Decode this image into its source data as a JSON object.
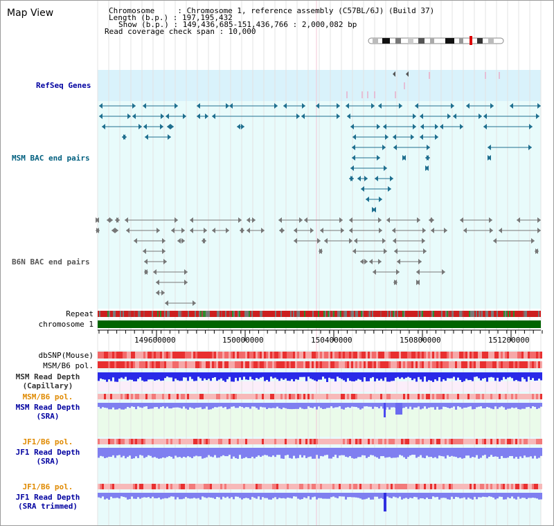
{
  "title": "Map View",
  "info": {
    "chromosome": "Chromosome     : Chromosome 1, reference assembly (C57BL/6J) (Build 37)",
    "length": "Length (b.p.) : 197,195,432",
    "show": "Show (b.p.) : 149,436,685-151,436,766 : 2,000,082 bp",
    "span": "Read coverage check span : 10,000"
  },
  "tracks": {
    "refseq": "RefSeq Genes",
    "msm_bac": "MSM BAC end pairs",
    "b6n_bac": "B6N BAC end pairs",
    "repeat": "Repeat",
    "chromosome": "chromosome 1",
    "dbsnp": "dbSNP(Mouse)",
    "msm_pol": "MSM/B6 pol.",
    "msm_depth_cap_1": "MSM Read Depth",
    "msm_depth_cap_2": "(Capillary)",
    "msm_pol2": "MSM/B6 pol.",
    "msm_depth_sra_1": "MSM Read Depth",
    "msm_depth_sra_2": "(SRA)",
    "jf1_pol": "JF1/B6 pol.",
    "jf1_depth_sra_1": "JF1 Read Depth",
    "jf1_depth_sra_2": "(SRA)",
    "jf1_pol2": "JF1/B6 pol.",
    "jf1_depth_trim_1": "JF1 Read Depth",
    "jf1_depth_trim_2": "(SRA trimmed)"
  },
  "ticks": [
    "149600000",
    "150000000",
    "150400000",
    "150800000",
    "151200000"
  ],
  "colors": {
    "refseq_bg": "#d9f2fb",
    "track_bg": "#e8fbfb",
    "msm_label": "#005f7f",
    "b6n_label": "#555555",
    "blue_label": "#0000a0",
    "orange_label": "#e08a00",
    "chromosome_bar": "#006400",
    "depth_dark": "#2a2ae8",
    "depth_light": "#7f7ff0"
  }
}
